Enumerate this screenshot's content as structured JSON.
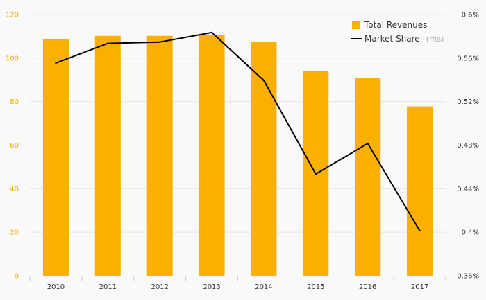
{
  "chart_data": {
    "type": "bar+line",
    "categories": [
      "2010",
      "2011",
      "2012",
      "2013",
      "2014",
      "2015",
      "2016",
      "2017"
    ],
    "series": [
      {
        "name": "Total Revenues",
        "type": "bar",
        "axis": "left",
        "color": "#f9b000",
        "values": [
          108.7,
          110.2,
          110.2,
          110.5,
          107.4,
          94.2,
          90.8,
          77.8
        ]
      },
      {
        "name": "Market Share",
        "type": "line",
        "axis": "right",
        "color": "#000000",
        "values": [
          0.5555,
          0.5735,
          0.5747,
          0.5835,
          0.5395,
          0.4535,
          0.4815,
          0.4014
        ]
      }
    ],
    "legend": {
      "position": "top-right",
      "items": [
        {
          "label": "Total Revenues",
          "suffix": ""
        },
        {
          "label": "Market Share",
          "suffix": "(rhs)"
        }
      ]
    },
    "y_left": {
      "ylim": [
        0,
        120
      ],
      "ticks": [
        0,
        20,
        40,
        60,
        80,
        100,
        120
      ],
      "tick_labels": [
        "0",
        "20",
        "40",
        "60",
        "80",
        "100",
        "120"
      ],
      "color": "#f5a800"
    },
    "y_right": {
      "ylim": [
        0.36,
        0.6
      ],
      "ticks": [
        0.36,
        0.4,
        0.44,
        0.48,
        0.52,
        0.56,
        0.6
      ],
      "tick_labels": [
        "0.36%",
        "0.4%",
        "0.44%",
        "0.48%",
        "0.52%",
        "0.56%",
        "0.6%"
      ]
    },
    "grid": true,
    "title": "",
    "xlabel": "",
    "ylabel": ""
  }
}
